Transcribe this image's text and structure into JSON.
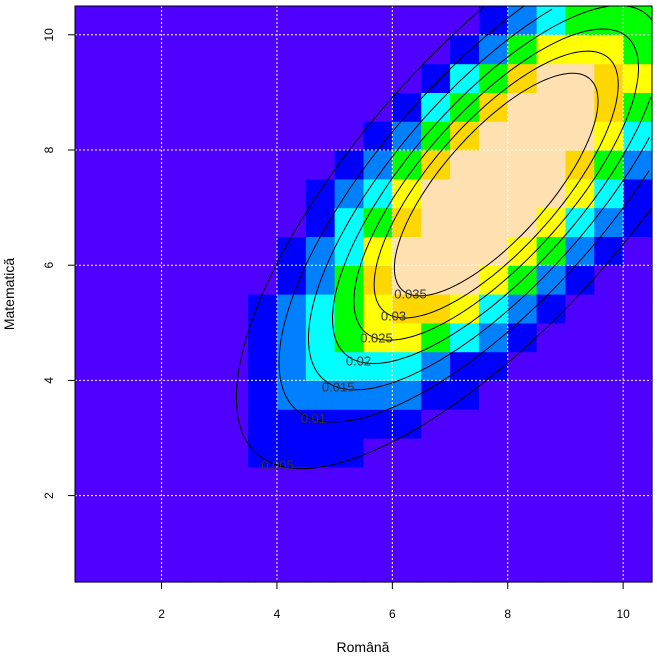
{
  "chart_data": {
    "type": "heatmap",
    "title": "",
    "xlabel": "Română",
    "ylabel": "Matematică",
    "xlim": [
      0.5,
      10.5
    ],
    "ylim": [
      0.5,
      10.5
    ],
    "xticks": [
      2,
      4,
      6,
      8,
      10
    ],
    "yticks": [
      2,
      4,
      6,
      8,
      10
    ],
    "grid": true,
    "colors": {
      "background": "#5000ff",
      "levels": [
        "#5000ff",
        "#0000ff",
        "#0080ff",
        "#00ffff",
        "#00ff00",
        "#ffff00",
        "#ffd700",
        "#ffe0b0"
      ]
    },
    "contour_levels": [
      {
        "label": "0.005",
        "level": 0.005
      },
      {
        "label": "0.01",
        "level": 0.01
      },
      {
        "label": "0.015",
        "level": 0.015
      },
      {
        "label": "0.02",
        "level": 0.02
      },
      {
        "label": "0.025",
        "level": 0.025
      },
      {
        "label": "0.03",
        "level": 0.03
      },
      {
        "label": "0.035",
        "level": 0.035
      }
    ],
    "density_model": {
      "mean": [
        7.8,
        7.4
      ],
      "sd": [
        2.1,
        2.3
      ],
      "correlation": 0.75,
      "cell_size": 0.5
    }
  }
}
